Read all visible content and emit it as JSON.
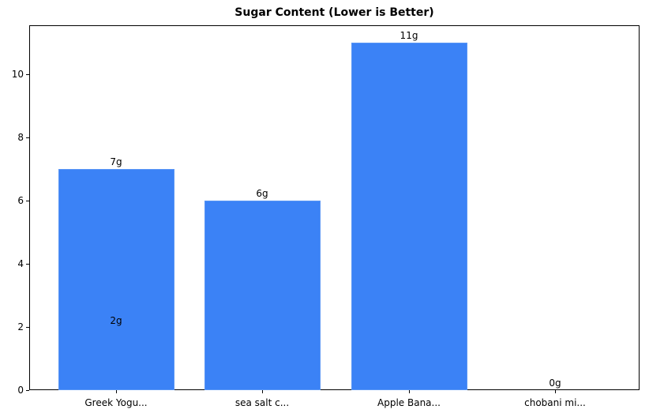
{
  "chart_data": {
    "type": "bar",
    "title": "Sugar Content (Lower is Better)",
    "xlabel": "",
    "ylabel": "",
    "categories": [
      "Greek Yogu...",
      "sea salt c...",
      "Apple Bana...",
      "chobani mi..."
    ],
    "values": [
      7,
      6,
      11,
      0
    ],
    "value_labels": [
      "7g",
      "6g",
      "11g",
      "0g"
    ],
    "annotations": [
      {
        "text": "2g",
        "x": "Greek Yogu...",
        "y": 2
      }
    ],
    "ylim": [
      0,
      11.55
    ],
    "yticks": [
      0,
      2,
      4,
      6,
      8,
      10
    ],
    "ytick_labels": [
      "0",
      "2",
      "4",
      "6",
      "8",
      "10"
    ],
    "grid": false,
    "legend": null,
    "bar_color": "#3b82f6"
  }
}
